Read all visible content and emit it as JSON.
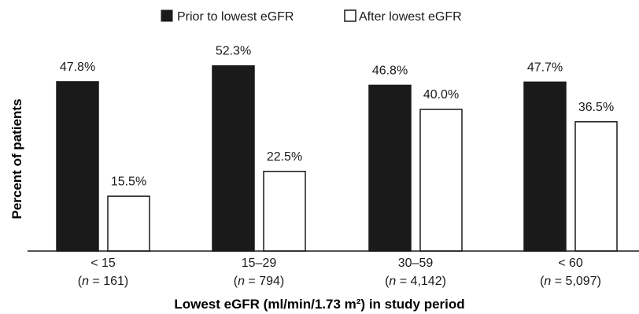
{
  "chart_data": {
    "type": "bar",
    "title": "",
    "xlabel": "Lowest eGFR (ml/min/1.73 m²) in study period",
    "ylabel": "Percent of patients",
    "ylim": [
      0,
      56
    ],
    "grid": false,
    "legend_position": "top-center",
    "categories": [
      "< 15",
      "15–29",
      "30–59",
      "< 60"
    ],
    "category_n": [
      "(n = 161)",
      "(n = 794)",
      "(n = 4,142)",
      "(n = 5,097)"
    ],
    "series": [
      {
        "name": "Prior to lowest eGFR",
        "color": "#1a1a1a",
        "values": [
          47.8,
          52.3,
          46.8,
          47.7
        ],
        "labels": [
          "47.8%",
          "52.3%",
          "46.8%",
          "47.7%"
        ]
      },
      {
        "name": "After lowest eGFR",
        "color": "#ffffff",
        "values": [
          15.5,
          22.5,
          40.0,
          36.5
        ],
        "labels": [
          "15.5%",
          "22.5%",
          "40.0%",
          "36.5%"
        ]
      }
    ]
  }
}
